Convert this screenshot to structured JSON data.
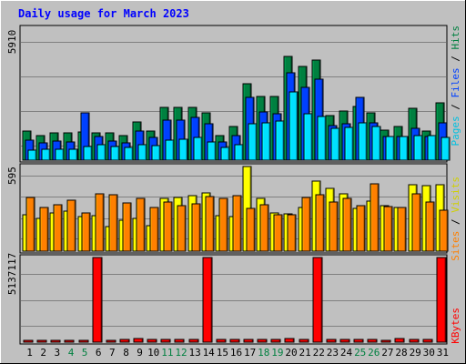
{
  "chart_data": {
    "title": "Daily usage for March 2023",
    "type": "bar",
    "x": {
      "labels": [
        "1",
        "2",
        "3",
        "4",
        "5",
        "6",
        "7",
        "8",
        "9",
        "10",
        "11",
        "12",
        "13",
        "14",
        "15",
        "16",
        "17",
        "18",
        "19",
        "20",
        "21",
        "22",
        "23",
        "24",
        "25",
        "26",
        "27",
        "28",
        "29",
        "30",
        "31"
      ],
      "weekend_days": [
        4,
        5,
        11,
        12,
        18,
        19,
        25,
        26
      ]
    },
    "panels": [
      {
        "name": "hits-files-pages",
        "ymax_label": "5910",
        "ymax": 5910,
        "axis_labels": [
          "Pages",
          "Files",
          "Hits"
        ],
        "series": [
          {
            "name": "Hits",
            "color": "#008040",
            "values": [
              1300,
              1100,
              1200,
              1200,
              1250,
              1200,
              1200,
              1100,
              1700,
              1300,
              2350,
              2350,
              2350,
              2100,
              1100,
              1500,
              3400,
              2850,
              2850,
              4600,
              4150,
              4450,
              2000,
              2200,
              2400,
              2100,
              1350,
              1500,
              2300,
              1300,
              2550
            ]
          },
          {
            "name": "Files",
            "color": "#0040ff",
            "values": [
              900,
              750,
              850,
              800,
              2100,
              1050,
              850,
              750,
              1300,
              1000,
              1800,
              1800,
              1900,
              1600,
              800,
              1100,
              2800,
              2150,
              2050,
              3900,
              3250,
              3600,
              1550,
              1600,
              2800,
              1650,
              1050,
              1050,
              1400,
              1050,
              1650
            ]
          },
          {
            "name": "Pages",
            "color": "#00e0ff",
            "values": [
              450,
              500,
              500,
              500,
              600,
              700,
              600,
              550,
              700,
              650,
              900,
              950,
              1000,
              800,
              550,
              700,
              1600,
              1650,
              1750,
              3050,
              2050,
              1950,
              1400,
              1450,
              1650,
              1500,
              1050,
              1050,
              1100,
              1100,
              1000
            ]
          }
        ]
      },
      {
        "name": "visits-sites",
        "ymax_label": "595",
        "ymax": 595,
        "axis_labels": [
          "Sites",
          "Visits"
        ],
        "series": [
          {
            "name": "Visits",
            "color": "#ffff00",
            "values": [
              255,
              230,
              270,
              280,
              240,
              250,
              170,
              220,
              230,
              180,
              370,
              380,
              390,
              410,
              250,
              240,
              595,
              370,
              270,
              260,
              310,
              490,
              440,
              400,
              300,
              350,
              320,
              310,
              470,
              460,
              470
            ]
          },
          {
            "name": "Sites",
            "color": "#ff8000",
            "values": [
              380,
              310,
              325,
              360,
              270,
              405,
              395,
              340,
              370,
              305,
              345,
              320,
              330,
              385,
              370,
              390,
              300,
              325,
              255,
              255,
              375,
              395,
              345,
              370,
              320,
              475,
              315,
              310,
              400,
              345,
              290
            ]
          }
        ]
      },
      {
        "name": "kbytes",
        "ymax_label": "5137117",
        "ymax": 5137117,
        "axis_labels": [
          "KBytes"
        ],
        "series": [
          {
            "name": "KBytes",
            "color": "#ff0000",
            "values": [
              110000,
              70000,
              70000,
              70000,
              110000,
              5137117,
              90000,
              180000,
              220000,
              180000,
              180000,
              180000,
              180000,
              5137117,
              150000,
              180000,
              180000,
              180000,
              180000,
              210000,
              180000,
              5137117,
              180000,
              180000,
              180000,
              150000,
              90000,
              220000,
              180000,
              180000,
              5137117
            ]
          }
        ]
      }
    ]
  }
}
